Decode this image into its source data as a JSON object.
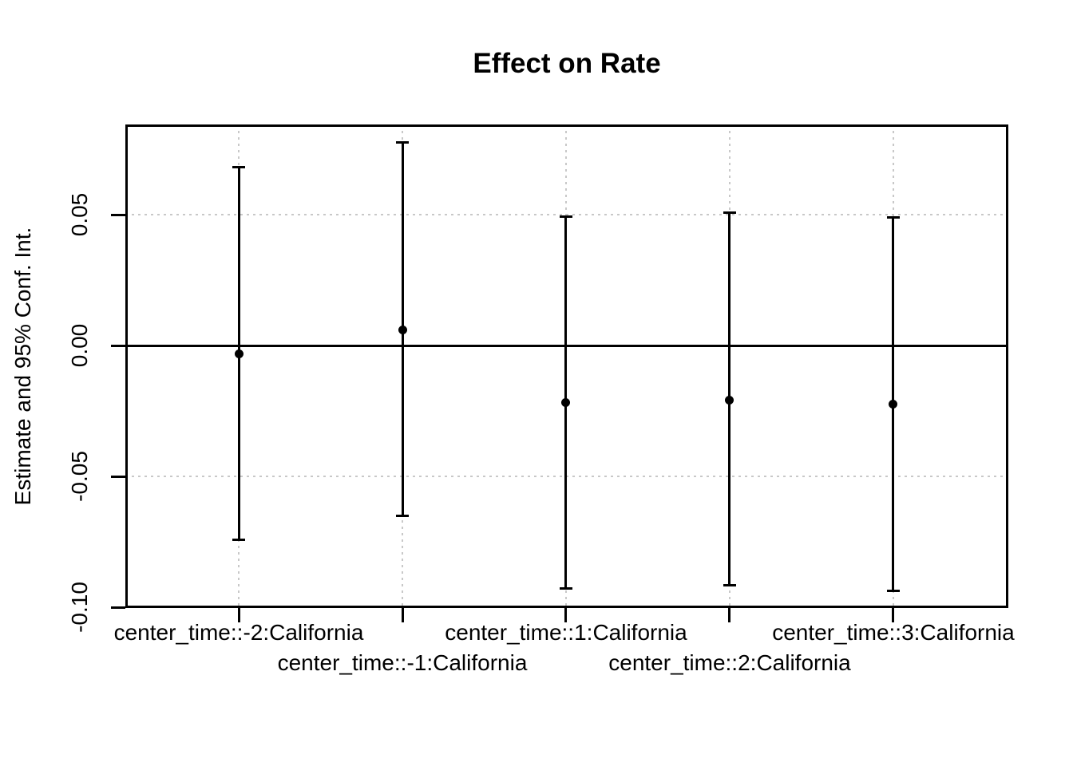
{
  "figure": {
    "background_color": "#ffffff",
    "foreground_color": "#000000"
  },
  "chart_data": {
    "type": "scatter",
    "subtype": "coefficient-estimates-with-error-bars",
    "title": "Effect on Rate",
    "xlabel": "",
    "ylabel": "Estimate and 95% Conf. Int.",
    "categories": [
      "center_time::-2:California",
      "center_time::-1:California",
      "center_time::1:California",
      "center_time::2:California",
      "center_time::3:California"
    ],
    "series": [
      {
        "name": "estimate",
        "values": [
          -0.0031,
          0.0061,
          -0.0219,
          -0.021,
          -0.0225
        ]
      },
      {
        "name": "ci_lower",
        "values": [
          -0.0743,
          -0.0652,
          -0.0927,
          -0.0917,
          -0.0936
        ]
      },
      {
        "name": "ci_upper",
        "values": [
          0.0683,
          0.0776,
          0.0493,
          0.0507,
          0.0489
        ]
      }
    ],
    "yticks": [
      {
        "value": 0.05,
        "label": "0.05"
      },
      {
        "value": 0.0,
        "label": "0.00"
      },
      {
        "value": -0.05,
        "label": "-0.05"
      },
      {
        "value": -0.1,
        "label": "-0.10"
      }
    ],
    "ylim": [
      -0.1003,
      0.0845
    ],
    "reference_line_y": 0,
    "grid": true,
    "gridline_color": "#c8c8c8",
    "point_color": "#000000",
    "error_bar_color": "#000000",
    "legend": "none",
    "x_label_stagger_rows": [
      0,
      1,
      0,
      1,
      0
    ]
  }
}
